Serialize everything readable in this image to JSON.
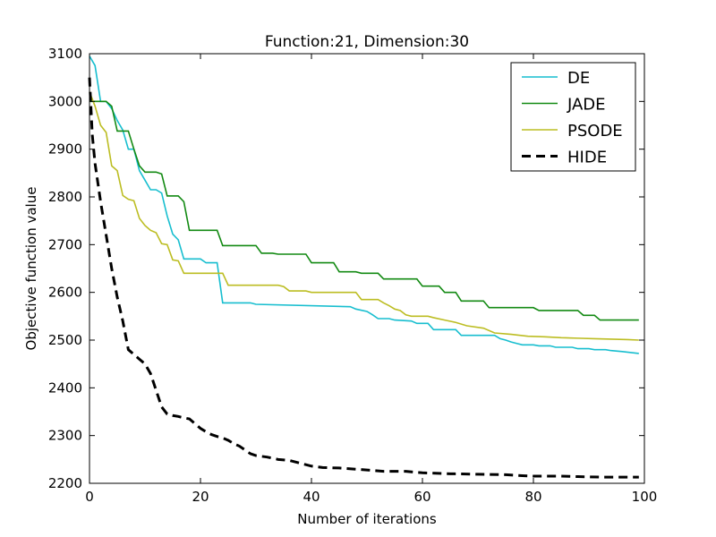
{
  "chart_data": {
    "type": "line",
    "title": "Function:21, Dimension:30",
    "xlabel": "Number of iterations",
    "ylabel": "Objective function value",
    "xlim": [
      0,
      100
    ],
    "ylim": [
      2200,
      3100
    ],
    "xticks": [
      0,
      20,
      40,
      60,
      80,
      100
    ],
    "yticks": [
      2200,
      2300,
      2400,
      2500,
      2600,
      2700,
      2800,
      2900,
      3000,
      3100
    ],
    "grid": false,
    "legend": "top-right",
    "series": [
      {
        "name": "DE",
        "color": "#17becf",
        "style": "solid",
        "points": [
          [
            0,
            3095
          ],
          [
            1,
            3075
          ],
          [
            2,
            3000
          ],
          [
            3,
            3000
          ],
          [
            4,
            2985
          ],
          [
            5,
            2960
          ],
          [
            6,
            2940
          ],
          [
            7,
            2900
          ],
          [
            8,
            2900
          ],
          [
            9,
            2855
          ],
          [
            10,
            2835
          ],
          [
            11,
            2815
          ],
          [
            12,
            2815
          ],
          [
            13,
            2808
          ],
          [
            14,
            2760
          ],
          [
            15,
            2722
          ],
          [
            16,
            2710
          ],
          [
            17,
            2670
          ],
          [
            20,
            2670
          ],
          [
            21,
            2662
          ],
          [
            23,
            2662
          ],
          [
            24,
            2578
          ],
          [
            29,
            2578
          ],
          [
            30,
            2575
          ],
          [
            47,
            2570
          ],
          [
            48,
            2565
          ],
          [
            50,
            2560
          ],
          [
            51,
            2553
          ],
          [
            52,
            2545
          ],
          [
            54,
            2545
          ],
          [
            55,
            2542
          ],
          [
            58,
            2540
          ],
          [
            59,
            2535
          ],
          [
            61,
            2535
          ],
          [
            62,
            2522
          ],
          [
            66,
            2522
          ],
          [
            67,
            2510
          ],
          [
            73,
            2510
          ],
          [
            74,
            2503
          ],
          [
            75,
            2500
          ],
          [
            76,
            2496
          ],
          [
            77,
            2493
          ],
          [
            78,
            2490
          ],
          [
            80,
            2490
          ],
          [
            81,
            2488
          ],
          [
            83,
            2488
          ],
          [
            84,
            2485
          ],
          [
            87,
            2485
          ],
          [
            88,
            2482
          ],
          [
            90,
            2482
          ],
          [
            91,
            2480
          ],
          [
            93,
            2480
          ],
          [
            94,
            2478
          ],
          [
            96,
            2476
          ],
          [
            99,
            2472
          ]
        ]
      },
      {
        "name": "JADE",
        "color": "#138a13",
        "style": "solid",
        "points": [
          [
            0,
            3000
          ],
          [
            3,
            3000
          ],
          [
            4,
            2990
          ],
          [
            5,
            2938
          ],
          [
            7,
            2938
          ],
          [
            8,
            2900
          ],
          [
            9,
            2865
          ],
          [
            10,
            2852
          ],
          [
            12,
            2852
          ],
          [
            13,
            2848
          ],
          [
            14,
            2802
          ],
          [
            16,
            2802
          ],
          [
            17,
            2790
          ],
          [
            18,
            2730
          ],
          [
            23,
            2730
          ],
          [
            24,
            2698
          ],
          [
            30,
            2698
          ],
          [
            31,
            2682
          ],
          [
            33,
            2682
          ],
          [
            34,
            2680
          ],
          [
            39,
            2680
          ],
          [
            40,
            2662
          ],
          [
            44,
            2662
          ],
          [
            45,
            2643
          ],
          [
            48,
            2643
          ],
          [
            49,
            2640
          ],
          [
            52,
            2640
          ],
          [
            53,
            2628
          ],
          [
            59,
            2628
          ],
          [
            60,
            2613
          ],
          [
            63,
            2613
          ],
          [
            64,
            2600
          ],
          [
            66,
            2600
          ],
          [
            67,
            2582
          ],
          [
            71,
            2582
          ],
          [
            72,
            2568
          ],
          [
            80,
            2568
          ],
          [
            81,
            2562
          ],
          [
            88,
            2562
          ],
          [
            89,
            2552
          ],
          [
            91,
            2552
          ],
          [
            92,
            2542
          ],
          [
            99,
            2542
          ]
        ]
      },
      {
        "name": "PSODE",
        "color": "#bcbd22",
        "style": "solid",
        "points": [
          [
            0,
            3020
          ],
          [
            1,
            2990
          ],
          [
            2,
            2950
          ],
          [
            3,
            2935
          ],
          [
            4,
            2865
          ],
          [
            5,
            2855
          ],
          [
            6,
            2803
          ],
          [
            7,
            2795
          ],
          [
            8,
            2792
          ],
          [
            9,
            2755
          ],
          [
            10,
            2740
          ],
          [
            11,
            2730
          ],
          [
            12,
            2725
          ],
          [
            13,
            2702
          ],
          [
            14,
            2700
          ],
          [
            15,
            2668
          ],
          [
            16,
            2666
          ],
          [
            17,
            2640
          ],
          [
            18,
            2640
          ],
          [
            24,
            2640
          ],
          [
            25,
            2615
          ],
          [
            34,
            2615
          ],
          [
            35,
            2612
          ],
          [
            36,
            2603
          ],
          [
            39,
            2603
          ],
          [
            40,
            2600
          ],
          [
            48,
            2600
          ],
          [
            49,
            2585
          ],
          [
            52,
            2585
          ],
          [
            53,
            2578
          ],
          [
            54,
            2572
          ],
          [
            55,
            2565
          ],
          [
            56,
            2562
          ],
          [
            57,
            2553
          ],
          [
            58,
            2550
          ],
          [
            61,
            2550
          ],
          [
            62,
            2547
          ],
          [
            64,
            2542
          ],
          [
            66,
            2537
          ],
          [
            68,
            2530
          ],
          [
            71,
            2525
          ],
          [
            73,
            2515
          ],
          [
            76,
            2512
          ],
          [
            79,
            2508
          ],
          [
            82,
            2507
          ],
          [
            85,
            2505
          ],
          [
            88,
            2504
          ],
          [
            91,
            2503
          ],
          [
            94,
            2502
          ],
          [
            97,
            2501
          ],
          [
            99,
            2500
          ]
        ]
      },
      {
        "name": "HIDE",
        "color": "#000000",
        "style": "dashed",
        "points": [
          [
            0,
            3050
          ],
          [
            0.5,
            2930
          ],
          [
            1,
            2870
          ],
          [
            2,
            2790
          ],
          [
            3,
            2720
          ],
          [
            4,
            2650
          ],
          [
            5,
            2590
          ],
          [
            6,
            2540
          ],
          [
            7,
            2480
          ],
          [
            8,
            2470
          ],
          [
            9,
            2460
          ],
          [
            10,
            2450
          ],
          [
            11,
            2430
          ],
          [
            12,
            2395
          ],
          [
            13,
            2360
          ],
          [
            14,
            2345
          ],
          [
            15,
            2342
          ],
          [
            16,
            2340
          ],
          [
            17,
            2337
          ],
          [
            18,
            2335
          ],
          [
            19,
            2325
          ],
          [
            20,
            2315
          ],
          [
            21,
            2308
          ],
          [
            22,
            2302
          ],
          [
            23,
            2298
          ],
          [
            24,
            2295
          ],
          [
            25,
            2290
          ],
          [
            26,
            2283
          ],
          [
            27,
            2278
          ],
          [
            28,
            2270
          ],
          [
            29,
            2262
          ],
          [
            30,
            2258
          ],
          [
            32,
            2255
          ],
          [
            34,
            2250
          ],
          [
            36,
            2248
          ],
          [
            38,
            2242
          ],
          [
            40,
            2236
          ],
          [
            42,
            2233
          ],
          [
            45,
            2232
          ],
          [
            50,
            2228
          ],
          [
            53,
            2225
          ],
          [
            57,
            2225
          ],
          [
            60,
            2222
          ],
          [
            65,
            2220
          ],
          [
            70,
            2219
          ],
          [
            75,
            2218
          ],
          [
            78,
            2216
          ],
          [
            80,
            2215
          ],
          [
            85,
            2215
          ],
          [
            88,
            2214
          ],
          [
            92,
            2213
          ],
          [
            96,
            2213
          ],
          [
            99,
            2213
          ]
        ]
      }
    ]
  }
}
